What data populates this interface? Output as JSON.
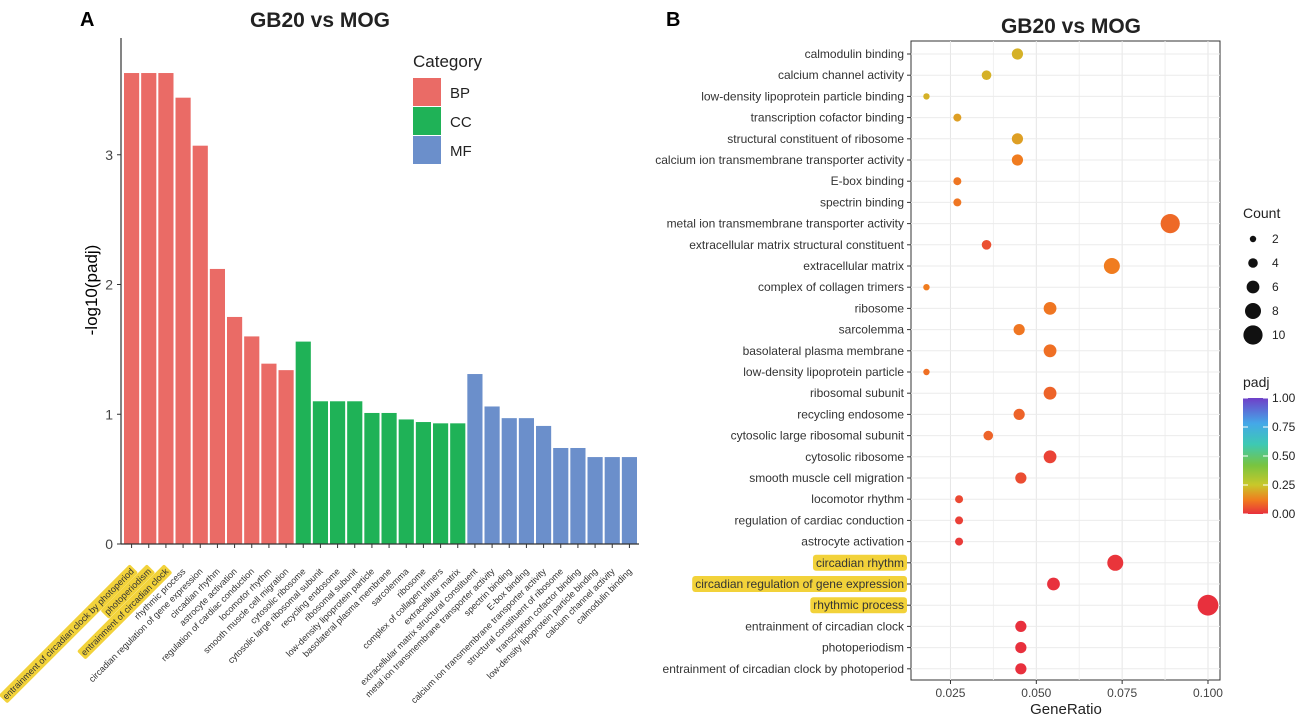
{
  "panel_a": {
    "label": "A",
    "title": "GB20 vs MOG",
    "ylabel": "-log10(padj)",
    "yticks": [
      0,
      1,
      2,
      3
    ],
    "ylim": [
      0,
      3.9
    ],
    "legend_title": "Category",
    "highlight_color": "#f2d23a"
  },
  "panel_b": {
    "label": "B",
    "title": "GB20 vs MOG",
    "xlabel": "GeneRatio",
    "xticks": [
      0.025,
      0.05,
      0.075,
      0.1
    ],
    "xtick_labels": [
      "0.025",
      "0.050",
      "0.075",
      "0.100"
    ],
    "xlim": [
      0.0135,
      0.1035
    ],
    "count_legend_title": "Count",
    "count_legend_values": [
      2,
      4,
      6,
      8,
      10
    ],
    "padj_legend_title": "padj",
    "padj_legend_ticks": [
      0.0,
      0.25,
      0.5,
      0.75,
      1.0
    ],
    "padj_legend_tick_labels": [
      "0.00",
      "0.25",
      "0.50",
      "0.75",
      "1.00"
    ],
    "highlight_color": "#f2d23a"
  },
  "chart_data": [
    {
      "type": "bar",
      "title": "GB20 vs MOG",
      "xlabel": "",
      "ylabel": "-log10(padj)",
      "ylim": [
        0,
        3.9
      ],
      "category_colors": {
        "BP": "#ea6b66",
        "CC": "#1fb257",
        "MF": "#6b8fcb"
      },
      "legend": [
        "BP",
        "CC",
        "MF"
      ],
      "bars": [
        {
          "term": "entrainment of circadian clock by photoperiod",
          "category": "BP",
          "value": 3.63,
          "highlight": true
        },
        {
          "term": "photoperiodism",
          "category": "BP",
          "value": 3.63,
          "highlight": true
        },
        {
          "term": "entrainment of circadian clock",
          "category": "BP",
          "value": 3.63,
          "highlight": true
        },
        {
          "term": "rhythmic process",
          "category": "BP",
          "value": 3.44,
          "highlight": false
        },
        {
          "term": "circadian regulation of gene expression",
          "category": "BP",
          "value": 3.07,
          "highlight": false
        },
        {
          "term": "circadian rhythm",
          "category": "BP",
          "value": 2.12,
          "highlight": false
        },
        {
          "term": "astrocyte activation",
          "category": "BP",
          "value": 1.75,
          "highlight": false
        },
        {
          "term": "regulation of cardiac conduction",
          "category": "BP",
          "value": 1.6,
          "highlight": false
        },
        {
          "term": "locomotor rhythm",
          "category": "BP",
          "value": 1.39,
          "highlight": false
        },
        {
          "term": "smooth muscle cell migration",
          "category": "BP",
          "value": 1.34,
          "highlight": false
        },
        {
          "term": "cytosolic ribosome",
          "category": "CC",
          "value": 1.56,
          "highlight": false
        },
        {
          "term": "cytosolic large ribosomal subunit",
          "category": "CC",
          "value": 1.1,
          "highlight": false
        },
        {
          "term": "recycling endosome",
          "category": "CC",
          "value": 1.1,
          "highlight": false
        },
        {
          "term": "ribosomal subunit",
          "category": "CC",
          "value": 1.1,
          "highlight": false
        },
        {
          "term": "low-density lipoprotein particle",
          "category": "CC",
          "value": 1.01,
          "highlight": false
        },
        {
          "term": "basolateral plasma membrane",
          "category": "CC",
          "value": 1.01,
          "highlight": false
        },
        {
          "term": "sarcolemma",
          "category": "CC",
          "value": 0.96,
          "highlight": false
        },
        {
          "term": "ribosome",
          "category": "CC",
          "value": 0.94,
          "highlight": false
        },
        {
          "term": "complex of collagen trimers",
          "category": "CC",
          "value": 0.93,
          "highlight": false
        },
        {
          "term": "extracellular matrix",
          "category": "CC",
          "value": 0.93,
          "highlight": false
        },
        {
          "term": "extracellular matrix structural constituent",
          "category": "MF",
          "value": 1.31,
          "highlight": false
        },
        {
          "term": "metal ion transmembrane transporter activity",
          "category": "MF",
          "value": 1.06,
          "highlight": false
        },
        {
          "term": "spectrin binding",
          "category": "MF",
          "value": 0.97,
          "highlight": false
        },
        {
          "term": "E-box binding",
          "category": "MF",
          "value": 0.97,
          "highlight": false
        },
        {
          "term": "calcium ion transmembrane transporter activity",
          "category": "MF",
          "value": 0.91,
          "highlight": false
        },
        {
          "term": "structural constituent of ribosome",
          "category": "MF",
          "value": 0.74,
          "highlight": false
        },
        {
          "term": "transcription cofactor binding",
          "category": "MF",
          "value": 0.74,
          "highlight": false
        },
        {
          "term": "low-density lipoprotein particle binding",
          "category": "MF",
          "value": 0.67,
          "highlight": false
        },
        {
          "term": "calcium channel activity",
          "category": "MF",
          "value": 0.67,
          "highlight": false
        },
        {
          "term": "calmodulin binding",
          "category": "MF",
          "value": 0.67,
          "highlight": false
        }
      ]
    },
    {
      "type": "scatter",
      "title": "GB20 vs MOG",
      "xlabel": "GeneRatio",
      "ylabel": "",
      "xlim": [
        0.0135,
        0.1035
      ],
      "size_legend": "Count",
      "color_legend": "padj",
      "points": [
        {
          "term": "calmodulin binding",
          "gene_ratio": 0.0445,
          "count": 5,
          "padj": 0.21,
          "highlight": false
        },
        {
          "term": "calcium channel activity",
          "gene_ratio": 0.0355,
          "count": 4,
          "padj": 0.21,
          "highlight": false
        },
        {
          "term": "low-density lipoprotein particle binding",
          "gene_ratio": 0.018,
          "count": 2,
          "padj": 0.21,
          "highlight": false
        },
        {
          "term": "transcription cofactor binding",
          "gene_ratio": 0.027,
          "count": 3,
          "padj": 0.18,
          "highlight": false
        },
        {
          "term": "structural constituent of ribosome",
          "gene_ratio": 0.0445,
          "count": 5,
          "padj": 0.18,
          "highlight": false
        },
        {
          "term": "calcium ion transmembrane transporter activity",
          "gene_ratio": 0.0445,
          "count": 5,
          "padj": 0.12,
          "highlight": false
        },
        {
          "term": "E-box binding",
          "gene_ratio": 0.027,
          "count": 3,
          "padj": 0.11,
          "highlight": false
        },
        {
          "term": "spectrin binding",
          "gene_ratio": 0.027,
          "count": 3,
          "padj": 0.11,
          "highlight": false
        },
        {
          "term": "metal ion transmembrane transporter activity",
          "gene_ratio": 0.089,
          "count": 10,
          "padj": 0.09,
          "highlight": false
        },
        {
          "term": "extracellular matrix structural constituent",
          "gene_ratio": 0.0355,
          "count": 4,
          "padj": 0.05,
          "highlight": false
        },
        {
          "term": "extracellular matrix",
          "gene_ratio": 0.072,
          "count": 8,
          "padj": 0.12,
          "highlight": false
        },
        {
          "term": "complex of collagen trimers",
          "gene_ratio": 0.018,
          "count": 2,
          "padj": 0.12,
          "highlight": false
        },
        {
          "term": "ribosome",
          "gene_ratio": 0.054,
          "count": 6,
          "padj": 0.11,
          "highlight": false
        },
        {
          "term": "sarcolemma",
          "gene_ratio": 0.045,
          "count": 5,
          "padj": 0.11,
          "highlight": false
        },
        {
          "term": "basolateral plasma membrane",
          "gene_ratio": 0.054,
          "count": 6,
          "padj": 0.1,
          "highlight": false
        },
        {
          "term": "low-density lipoprotein particle",
          "gene_ratio": 0.018,
          "count": 2,
          "padj": 0.1,
          "highlight": false
        },
        {
          "term": "ribosomal subunit",
          "gene_ratio": 0.054,
          "count": 6,
          "padj": 0.08,
          "highlight": false
        },
        {
          "term": "recycling endosome",
          "gene_ratio": 0.045,
          "count": 5,
          "padj": 0.08,
          "highlight": false
        },
        {
          "term": "cytosolic large ribosomal subunit",
          "gene_ratio": 0.036,
          "count": 4,
          "padj": 0.08,
          "highlight": false
        },
        {
          "term": "cytosolic ribosome",
          "gene_ratio": 0.054,
          "count": 6,
          "padj": 0.03,
          "highlight": false
        },
        {
          "term": "smooth muscle cell migration",
          "gene_ratio": 0.0455,
          "count": 5,
          "padj": 0.045,
          "highlight": false
        },
        {
          "term": "locomotor rhythm",
          "gene_ratio": 0.0275,
          "count": 3,
          "padj": 0.04,
          "highlight": false
        },
        {
          "term": "regulation of cardiac conduction",
          "gene_ratio": 0.0275,
          "count": 3,
          "padj": 0.025,
          "highlight": false
        },
        {
          "term": "astrocyte activation",
          "gene_ratio": 0.0275,
          "count": 3,
          "padj": 0.018,
          "highlight": false
        },
        {
          "term": "circadian rhythm",
          "gene_ratio": 0.073,
          "count": 8,
          "padj": 0.008,
          "highlight": true
        },
        {
          "term": "circadian regulation of gene expression",
          "gene_ratio": 0.055,
          "count": 6,
          "padj": 0.001,
          "highlight": true
        },
        {
          "term": "rhythmic process",
          "gene_ratio": 0.1,
          "count": 11,
          "padj": 0.0004,
          "highlight": true
        },
        {
          "term": "entrainment of circadian clock",
          "gene_ratio": 0.0455,
          "count": 5,
          "padj": 0.0002,
          "highlight": false
        },
        {
          "term": "photoperiodism",
          "gene_ratio": 0.0455,
          "count": 5,
          "padj": 0.0002,
          "highlight": false
        },
        {
          "term": "entrainment of circadian clock by photoperiod",
          "gene_ratio": 0.0455,
          "count": 5,
          "padj": 0.0002,
          "highlight": false
        }
      ]
    }
  ]
}
